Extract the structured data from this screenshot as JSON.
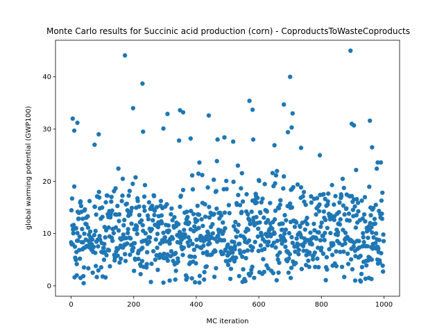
{
  "chart_data": {
    "type": "scatter",
    "title": "Monte Carlo results for Succinic acid production (corn) - CoproductsToWasteCoproducts",
    "xlabel": "MC iteration",
    "ylabel": "global warming potential (GWP100)",
    "xlim": [
      -50,
      1050
    ],
    "ylim": [
      -2,
      47
    ],
    "xticks": [
      0,
      200,
      400,
      600,
      800,
      1000
    ],
    "yticks": [
      0,
      10,
      20,
      30,
      40
    ],
    "grid": false,
    "legend": false,
    "color": "#1f77b4",
    "n_points": 1000,
    "highlighted_points": [
      {
        "x": 5,
        "y": 32.0
      },
      {
        "x": 10,
        "y": 29.7
      },
      {
        "x": 10,
        "y": 19.0
      },
      {
        "x": 20,
        "y": 31.2
      },
      {
        "x": 75,
        "y": 27.0
      },
      {
        "x": 88,
        "y": 29.0
      },
      {
        "x": 172,
        "y": 44.1
      },
      {
        "x": 198,
        "y": 34.0
      },
      {
        "x": 228,
        "y": 38.7
      },
      {
        "x": 230,
        "y": 29.5
      },
      {
        "x": 295,
        "y": 30.1
      },
      {
        "x": 308,
        "y": 32.9
      },
      {
        "x": 348,
        "y": 33.6
      },
      {
        "x": 358,
        "y": 33.2
      },
      {
        "x": 345,
        "y": 27.8
      },
      {
        "x": 382,
        "y": 28.2
      },
      {
        "x": 440,
        "y": 32.6
      },
      {
        "x": 468,
        "y": 28.0
      },
      {
        "x": 490,
        "y": 28.4
      },
      {
        "x": 518,
        "y": 27.6
      },
      {
        "x": 570,
        "y": 35.4
      },
      {
        "x": 580,
        "y": 33.7
      },
      {
        "x": 582,
        "y": 28.0
      },
      {
        "x": 650,
        "y": 26.9
      },
      {
        "x": 680,
        "y": 34.7
      },
      {
        "x": 693,
        "y": 29.4
      },
      {
        "x": 700,
        "y": 40.0
      },
      {
        "x": 708,
        "y": 33.0
      },
      {
        "x": 705,
        "y": 30.3
      },
      {
        "x": 735,
        "y": 26.4
      },
      {
        "x": 893,
        "y": 45.0
      },
      {
        "x": 897,
        "y": 31.0
      },
      {
        "x": 904,
        "y": 30.7
      },
      {
        "x": 955,
        "y": 31.6
      },
      {
        "x": 962,
        "y": 26.5
      },
      {
        "x": 980,
        "y": 23.6
      },
      {
        "x": 990,
        "y": 23.6
      },
      {
        "x": 40,
        "y": 0.5
      },
      {
        "x": 18,
        "y": 2.0
      },
      {
        "x": 30,
        "y": 1.5
      },
      {
        "x": 295,
        "y": 0.6
      },
      {
        "x": 315,
        "y": 1.0
      },
      {
        "x": 410,
        "y": 0.6
      },
      {
        "x": 425,
        "y": 1.2
      },
      {
        "x": 702,
        "y": 1.5
      },
      {
        "x": 908,
        "y": 1.0
      },
      {
        "x": 952,
        "y": 1.5
      },
      {
        "x": 960,
        "y": 1.3
      }
    ],
    "bulk_distribution": {
      "median": 9.5,
      "spread": 4.5,
      "min": 0.5,
      "max_bulk": 25
    }
  }
}
